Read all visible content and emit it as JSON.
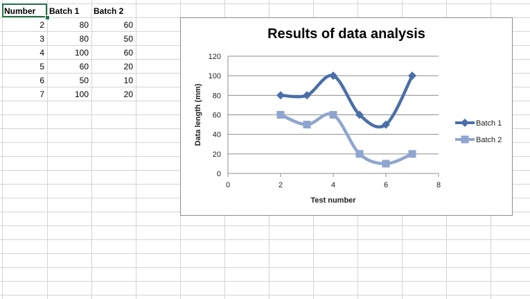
{
  "spreadsheet": {
    "headers": [
      "Number",
      "Batch 1",
      "Batch 2"
    ],
    "rows": [
      [
        "2",
        "80",
        "60"
      ],
      [
        "3",
        "80",
        "50"
      ],
      [
        "4",
        "100",
        "60"
      ],
      [
        "5",
        "60",
        "20"
      ],
      [
        "6",
        "50",
        "10"
      ],
      [
        "7",
        "100",
        "20"
      ]
    ]
  },
  "chart_data": {
    "type": "scatter",
    "title": "Results of data analysis",
    "xlabel": "Test number",
    "ylabel": "Data length (mm)",
    "xlim": [
      0,
      8
    ],
    "ylim": [
      0,
      120
    ],
    "xticks": [
      "0",
      "2",
      "4",
      "6",
      "8"
    ],
    "yticks": [
      "0",
      "20",
      "40",
      "60",
      "80",
      "100",
      "120"
    ],
    "grid": "horizontal",
    "legend": "right",
    "line_style": "smooth",
    "series": [
      {
        "name": "Batch 1",
        "x": [
          2,
          3,
          4,
          5,
          6,
          7
        ],
        "y": [
          80,
          80,
          100,
          60,
          50,
          100
        ],
        "color": "#4a6fa8",
        "marker": "diamond"
      },
      {
        "name": "Batch 2",
        "x": [
          2,
          3,
          4,
          5,
          6,
          7
        ],
        "y": [
          60,
          50,
          60,
          20,
          10,
          20
        ],
        "color": "#8ea5cf",
        "marker": "square"
      }
    ]
  }
}
